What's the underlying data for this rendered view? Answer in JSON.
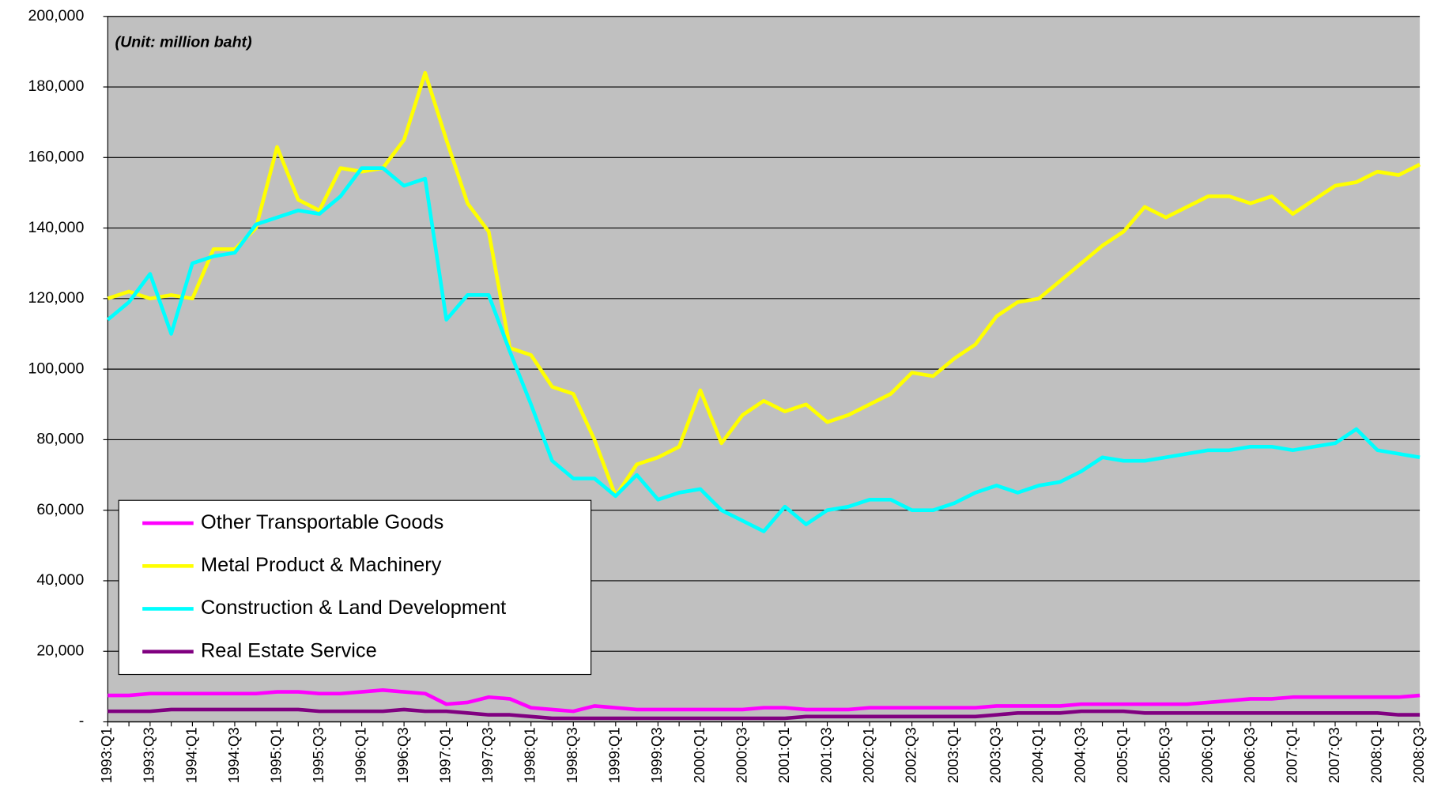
{
  "chart_data": {
    "type": "line",
    "annotation": "(Unit: million baht)",
    "categories": [
      "1993:Q1",
      null,
      "1993:Q3",
      null,
      "1994:Q1",
      null,
      "1994:Q3",
      null,
      "1995:Q1",
      null,
      "1995:Q3",
      null,
      "1996:Q1",
      null,
      "1996:Q3",
      null,
      "1997:Q1",
      null,
      "1997:Q3",
      null,
      "1998:Q1",
      null,
      "1998:Q3",
      null,
      "1999:Q1",
      null,
      "1999:Q3",
      null,
      "2000:Q1",
      null,
      "2000:Q3",
      null,
      "2001:Q1",
      null,
      "2001:Q3",
      null,
      "2002:Q1",
      null,
      "2002:Q3",
      null,
      "2003:Q1",
      null,
      "2003:Q3",
      null,
      "2004:Q1",
      null,
      "2004:Q3",
      null,
      "2005:Q1",
      null,
      "2005:Q3",
      null,
      "2006:Q1",
      null,
      "2006:Q3",
      null,
      "2007:Q1",
      null,
      "2007:Q3",
      null,
      "2008:Q1",
      null,
      "2008:Q3"
    ],
    "series": [
      {
        "name": "Other Transportable Goods",
        "color": "#ff00ff",
        "values": [
          7500,
          7500,
          8000,
          8000,
          8000,
          8000,
          8000,
          8000,
          8500,
          8500,
          8000,
          8000,
          8500,
          9000,
          8500,
          8000,
          5000,
          5500,
          7000,
          6500,
          4000,
          3500,
          3000,
          4500,
          4000,
          3500,
          3500,
          3500,
          3500,
          3500,
          3500,
          4000,
          4000,
          3500,
          3500,
          3500,
          4000,
          4000,
          4000,
          4000,
          4000,
          4000,
          4500,
          4500,
          4500,
          4500,
          5000,
          5000,
          5000,
          5000,
          5000,
          5000,
          5500,
          6000,
          6500,
          6500,
          7000,
          7000,
          7000,
          7000,
          7000,
          7000,
          7500
        ]
      },
      {
        "name": "Metal Product & Machinery",
        "color": "#ffff00",
        "values": [
          120000,
          122000,
          120000,
          121000,
          120000,
          134000,
          134000,
          140000,
          163000,
          148000,
          145000,
          157000,
          156000,
          157000,
          165000,
          184000,
          165000,
          147000,
          139000,
          106000,
          104000,
          95000,
          93000,
          80000,
          64000,
          73000,
          75000,
          78000,
          94000,
          79000,
          87000,
          91000,
          88000,
          90000,
          85000,
          87000,
          90000,
          93000,
          99000,
          98000,
          103000,
          107000,
          115000,
          119000,
          120000,
          125000,
          130000,
          135000,
          139000,
          146000,
          143000,
          146000,
          149000,
          149000,
          147000,
          149000,
          144000,
          148000,
          152000,
          153000,
          156000,
          155000,
          158000
        ]
      },
      {
        "name": "Construction & Land Development",
        "color": "#00ffff",
        "values": [
          114000,
          119000,
          127000,
          110000,
          130000,
          132000,
          133000,
          141000,
          143000,
          145000,
          144000,
          149000,
          157000,
          157000,
          152000,
          154000,
          114000,
          121000,
          121000,
          105000,
          90000,
          74000,
          69000,
          69000,
          64000,
          70000,
          63000,
          65000,
          66000,
          60000,
          57000,
          54000,
          61000,
          56000,
          60000,
          61000,
          63000,
          63000,
          60000,
          60000,
          62000,
          65000,
          67000,
          65000,
          67000,
          68000,
          71000,
          75000,
          74000,
          74000,
          75000,
          76000,
          77000,
          77000,
          78000,
          78000,
          77000,
          78000,
          79000,
          83000,
          77000,
          76000,
          75000
        ]
      },
      {
        "name": "Real Estate Service",
        "color": "#800080",
        "values": [
          3000,
          3000,
          3000,
          3500,
          3500,
          3500,
          3500,
          3500,
          3500,
          3500,
          3000,
          3000,
          3000,
          3000,
          3500,
          3000,
          3000,
          2500,
          2000,
          2000,
          1500,
          1000,
          1000,
          1000,
          1000,
          1000,
          1000,
          1000,
          1000,
          1000,
          1000,
          1000,
          1000,
          1500,
          1500,
          1500,
          1500,
          1500,
          1500,
          1500,
          1500,
          1500,
          2000,
          2500,
          2500,
          2500,
          3000,
          3000,
          3000,
          2500,
          2500,
          2500,
          2500,
          2500,
          2500,
          2500,
          2500,
          2500,
          2500,
          2500,
          2500,
          2000,
          2000
        ]
      }
    ],
    "ylim": [
      0,
      200000
    ],
    "yticks": [
      {
        "value": 0,
        "label": "-"
      },
      {
        "value": 20000,
        "label": "20,000"
      },
      {
        "value": 40000,
        "label": "40,000"
      },
      {
        "value": 60000,
        "label": "60,000"
      },
      {
        "value": 80000,
        "label": "80,000"
      },
      {
        "value": 100000,
        "label": "100,000"
      },
      {
        "value": 120000,
        "label": "120,000"
      },
      {
        "value": 140000,
        "label": "140,000"
      },
      {
        "value": 160000,
        "label": "160,000"
      },
      {
        "value": 180000,
        "label": "180,000"
      },
      {
        "value": 200000,
        "label": "200,000"
      }
    ],
    "grid": true,
    "legend": "lower left"
  }
}
